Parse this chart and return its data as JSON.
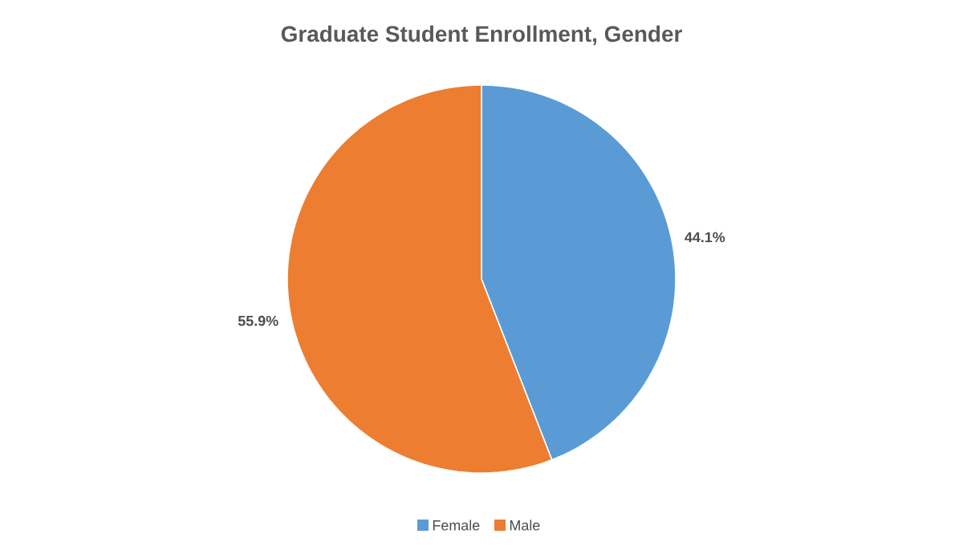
{
  "chart_data": {
    "type": "pie",
    "title": "Graduate Student Enrollment, Gender",
    "categories": [
      "Female",
      "Male"
    ],
    "values": [
      44.1,
      55.9
    ],
    "colors": [
      "#5b9bd5",
      "#ed7d31"
    ],
    "value_labels": [
      "44.1%",
      "55.9%"
    ],
    "legend": "bottom"
  }
}
